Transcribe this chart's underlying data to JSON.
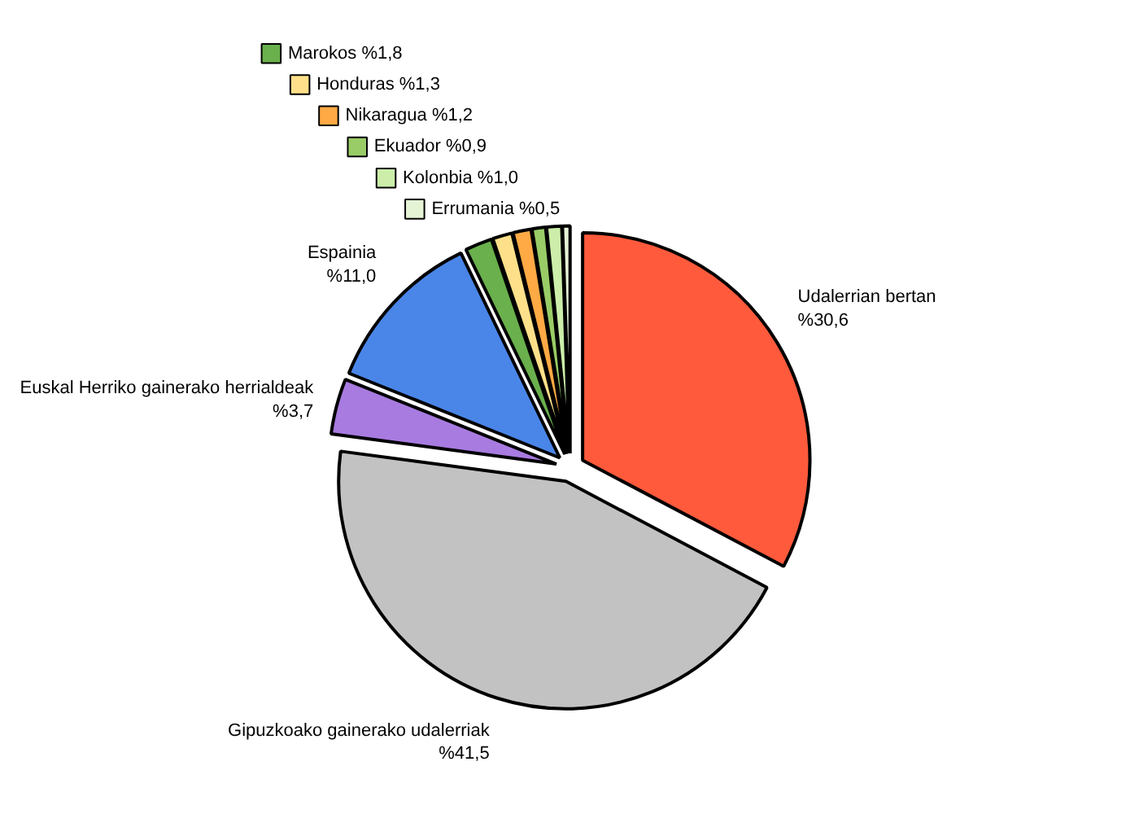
{
  "chart_data": {
    "type": "pie",
    "categories": [
      "Udalerrian bertan",
      "Gipuzkoako gainerako udalerriak",
      "Euskal Herriko gainerako herrialdeak",
      "Espainia",
      "Marokos",
      "Honduras",
      "Nikaragua",
      "Ekuador",
      "Kolonbia",
      "Errumania"
    ],
    "values": [
      30.6,
      41.5,
      3.7,
      11.0,
      1.8,
      1.3,
      1.2,
      0.9,
      1.0,
      0.5
    ],
    "value_labels": [
      "%30,6",
      "%41,5",
      "%3,7",
      "%11,0",
      "%1,8",
      "%1,3",
      "%1,2",
      "%0,9",
      "%1,0",
      "%0,5"
    ],
    "colors": [
      "#ff5a3c",
      "#c2c2c2",
      "#a87be0",
      "#4a86e8",
      "#6ab04c",
      "#ffe08a",
      "#ffaa44",
      "#99cc66",
      "#cceeaa",
      "#e6f4d6"
    ],
    "legend": "top"
  }
}
